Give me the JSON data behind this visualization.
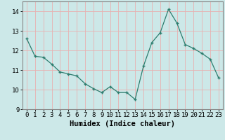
{
  "x": [
    0,
    1,
    2,
    3,
    4,
    5,
    6,
    7,
    8,
    9,
    10,
    11,
    12,
    13,
    14,
    15,
    16,
    17,
    18,
    19,
    20,
    21,
    22,
    23
  ],
  "y": [
    12.6,
    11.7,
    11.65,
    11.3,
    10.9,
    10.8,
    10.7,
    10.3,
    10.05,
    9.85,
    10.15,
    9.85,
    9.85,
    9.5,
    11.2,
    12.4,
    12.9,
    14.1,
    13.4,
    12.3,
    12.1,
    11.85,
    11.55,
    10.6
  ],
  "bg_color": "#cce8e8",
  "line_color": "#2d7d6e",
  "marker": "+",
  "grid_color": "#e8b0b0",
  "xlabel": "Humidex (Indice chaleur)",
  "ylim": [
    9,
    14.5
  ],
  "xlim": [
    -0.5,
    23.5
  ],
  "yticks": [
    9,
    10,
    11,
    12,
    13,
    14
  ],
  "xticks": [
    0,
    1,
    2,
    3,
    4,
    5,
    6,
    7,
    8,
    9,
    10,
    11,
    12,
    13,
    14,
    15,
    16,
    17,
    18,
    19,
    20,
    21,
    22,
    23
  ],
  "xlabel_fontsize": 7.5,
  "tick_fontsize": 6.5,
  "bg_color_outer": "#cce8e8",
  "spine_color": "#888888",
  "linewidth": 0.9,
  "markersize": 3.5
}
